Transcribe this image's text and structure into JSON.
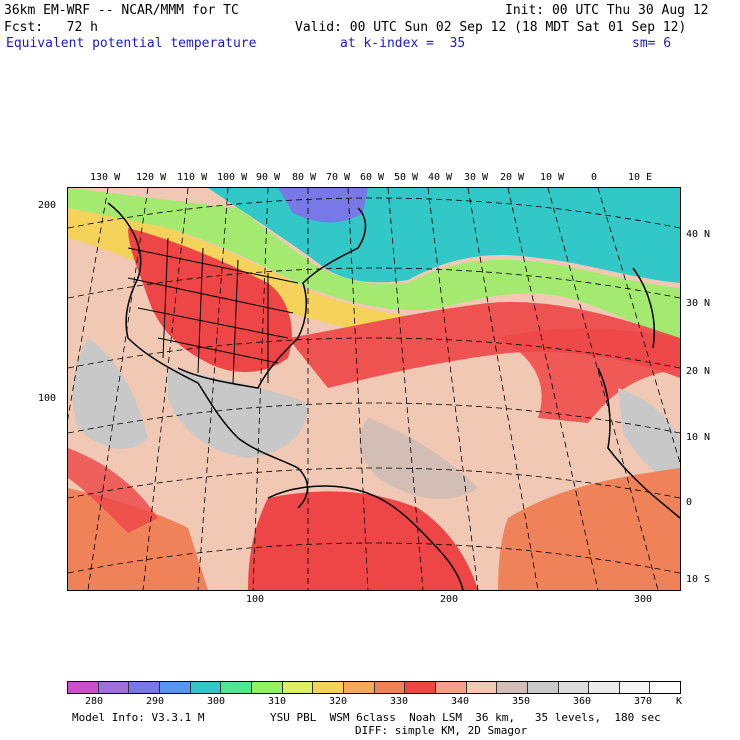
{
  "header": {
    "model": "36km EM-WRF -- NCAR/MMM for TC",
    "init": "Init: 00 UTC Thu 30 Aug 12",
    "fcst": "Fcst:   72 h",
    "valid": "Valid: 00 UTC Sun 02 Sep 12 (18 MDT Sat 01 Sep 12)",
    "field": "Equivalent potential temperature",
    "kindex": "at k-index =  35",
    "sm": "sm= 6"
  },
  "map": {
    "lon_labels": [
      "130 W",
      "120 W",
      "110 W",
      "100 W",
      "90 W",
      "80 W",
      "70 W",
      "60 W",
      "50 W",
      "40 W",
      "30 W",
      "20 W",
      "10 W",
      "0",
      "10 E"
    ],
    "lat_labels": [
      "40 N",
      "30 N",
      "20 N",
      "10 N",
      "0",
      "10 S"
    ],
    "grid_y_labels": [
      "200",
      "100"
    ],
    "grid_x_labels": [
      "100",
      "200",
      "300"
    ]
  },
  "colorbar": {
    "labels": [
      "280",
      "290",
      "300",
      "310",
      "320",
      "330",
      "340",
      "350",
      "360",
      "370"
    ],
    "unit": "K",
    "colors": [
      "#c850c8",
      "#a070d8",
      "#7878e6",
      "#5a96f0",
      "#32c8c8",
      "#50e696",
      "#96f064",
      "#dcf064",
      "#f5d25a",
      "#f5aa5a",
      "#f0825a",
      "#ee4646",
      "#f5a08c",
      "#f0c8b4",
      "#d2beb4",
      "#c8c8c8",
      "#dcdcdc",
      "#ebebeb",
      "#f5f5f5",
      "#ffffff"
    ]
  },
  "footer": {
    "model_info": "Model Info: V3.3.1 M",
    "physics": "YSU PBL  WSM 6class  Noah LSM  36 km,   35 levels,  180 sec",
    "diff": "DIFF: simple KM, 2D Smagor"
  }
}
